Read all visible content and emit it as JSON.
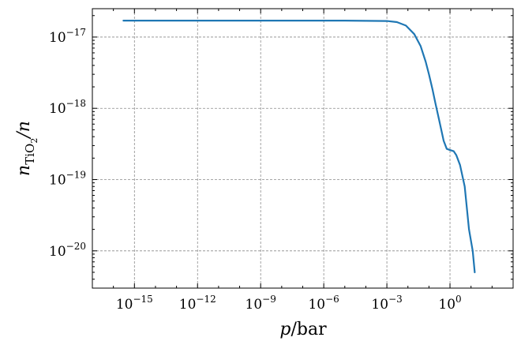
{
  "chart_data": {
    "type": "line",
    "xscale": "log",
    "yscale": "log",
    "xlim": [
      1e-17,
      1000.0
    ],
    "ylim": [
      3e-21,
      2.5e-17
    ],
    "grid": true,
    "xlabel_var": "p",
    "xlabel_unit": "/bar",
    "ylabel_var": "n",
    "ylabel_sub": "TiO",
    "ylabel_subsub": "2",
    "ylabel_tail": "/n",
    "xticks": [
      {
        "value": 1e-15,
        "base": "10",
        "exp": "−15"
      },
      {
        "value": 1e-12,
        "base": "10",
        "exp": "−12"
      },
      {
        "value": 1e-09,
        "base": "10",
        "exp": "−9"
      },
      {
        "value": 1e-06,
        "base": "10",
        "exp": "−6"
      },
      {
        "value": 0.001,
        "base": "10",
        "exp": "−3"
      },
      {
        "value": 1,
        "base": "10",
        "exp": "0"
      }
    ],
    "yticks": [
      {
        "value": 1e-17,
        "base": "10",
        "exp": "−17"
      },
      {
        "value": 1e-18,
        "base": "10",
        "exp": "−18"
      },
      {
        "value": 1e-19,
        "base": "10",
        "exp": "−19"
      },
      {
        "value": 1e-20,
        "base": "10",
        "exp": "−20"
      }
    ],
    "series": [
      {
        "color": "#1f77b4",
        "x": [
          3e-16,
          1e-12,
          1e-08,
          1e-05,
          0.001,
          0.003,
          0.008,
          0.02,
          0.04,
          0.07,
          0.1,
          0.15,
          0.2,
          0.3,
          0.5,
          0.7,
          1,
          1.5,
          2,
          3,
          5,
          8,
          12,
          15
        ],
        "y": [
          1.7e-17,
          1.7e-17,
          1.7e-17,
          1.7e-17,
          1.68e-17,
          1.62e-17,
          1.45e-17,
          1.1e-17,
          7.5e-18,
          4.5e-18,
          3e-18,
          1.8e-18,
          1.2e-18,
          7e-19,
          3.5e-19,
          2.7e-19,
          2.6e-19,
          2.5e-19,
          2.2e-19,
          1.6e-19,
          8e-20,
          2e-20,
          1e-20,
          5e-21
        ]
      }
    ]
  }
}
